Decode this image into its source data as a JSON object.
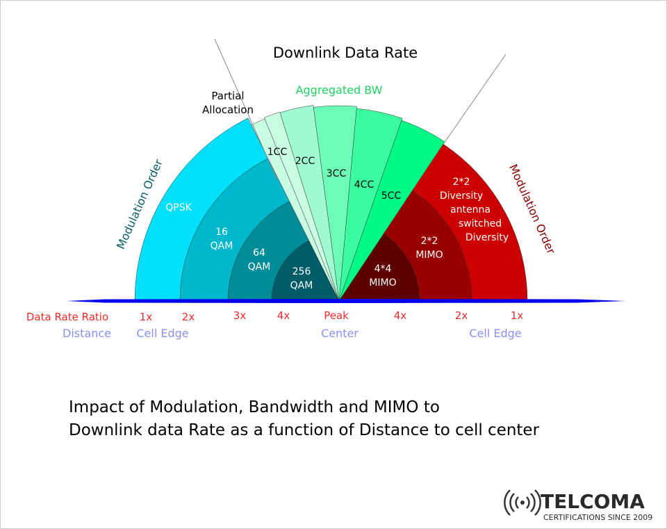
{
  "title": "Downlink Data Rate",
  "partial_allocation": [
    "Partial",
    "Allocation"
  ],
  "aggregated_bw": "Aggregated BW",
  "modulation_order_left": "Modulation Order",
  "modulation_order_right": "Modulation Order",
  "modulation": [
    {
      "label": [
        "QPSK"
      ],
      "color": "#00e0fa"
    },
    {
      "label": [
        "16",
        "QAM"
      ],
      "color": "#00b8cc"
    },
    {
      "label": [
        "64",
        "QAM"
      ],
      "color": "#008c99"
    },
    {
      "label": [
        "256",
        "QAM"
      ],
      "color": "#005c66"
    }
  ],
  "carriers": [
    {
      "label": "",
      "color": "#c9fce2"
    },
    {
      "label": "1CC",
      "color": "#c9fce2"
    },
    {
      "label": "2CC",
      "color": "#a0fbd0"
    },
    {
      "label": "3CC",
      "color": "#6cfcb8"
    },
    {
      "label": "4CC",
      "color": "#3bfb9f"
    },
    {
      "label": "5CC",
      "color": "#00fa85"
    }
  ],
  "mimo": [
    {
      "label": [
        "2*2",
        "Diversity",
        "antenna",
        "switched",
        "Diversity"
      ],
      "color": "#cc0000"
    },
    {
      "label": [
        "2*2",
        "MIMO"
      ],
      "color": "#990000"
    },
    {
      "label": [
        "4*4",
        "MIMO"
      ],
      "color": "#5c0000"
    }
  ],
  "baseline_color": "#0000ee",
  "data_rate_ratio": {
    "label": "Data Rate Ratio",
    "ticks": [
      "1x",
      "2x",
      "3x",
      "4x",
      "Peak",
      "4x",
      "2x",
      "1x"
    ]
  },
  "distance": {
    "label": "Distance",
    "ticks": [
      "Cell Edge",
      "Center",
      "Cell Edge"
    ]
  },
  "caption": [
    "Impact of Modulation, Bandwidth and MIMO to",
    "Downlink data Rate as a function of Distance to cell center"
  ],
  "logo": {
    "name": "TELCOMA",
    "tagline": "CERTIFICATIONS SINCE 2009"
  }
}
